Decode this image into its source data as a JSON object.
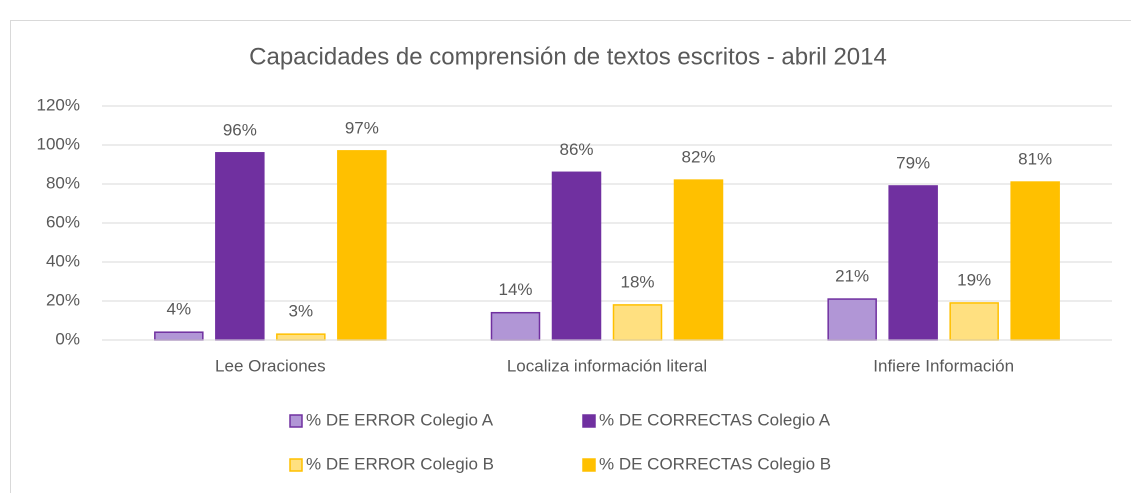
{
  "chart_data": {
    "type": "bar",
    "title": "Capacidades de comprensión de textos escritos - abril 2014",
    "categories": [
      "Lee Oraciones",
      "Localiza información literal",
      "Infiere Información"
    ],
    "series": [
      {
        "name": "% DE ERROR Colegio A",
        "color": "#b196d6",
        "border": "#7030a0",
        "values": [
          4,
          14,
          21
        ],
        "value_labels": [
          "4%",
          "14%",
          "21%"
        ]
      },
      {
        "name": "% DE CORRECTAS Colegio A",
        "color": "#7030a0",
        "border": "#7030a0",
        "values": [
          96,
          86,
          79
        ],
        "value_labels": [
          "96%",
          "86%",
          "79%"
        ]
      },
      {
        "name": "% DE ERROR Colegio B",
        "color": "#ffe080",
        "border": "#ffc000",
        "values": [
          3,
          18,
          19
        ],
        "value_labels": [
          "3%",
          "18%",
          "19%"
        ]
      },
      {
        "name": "% DE CORRECTAS Colegio B",
        "color": "#ffc000",
        "border": "#ffc000",
        "values": [
          97,
          82,
          81
        ],
        "value_labels": [
          "97%",
          "82%",
          "81%"
        ]
      }
    ],
    "ylim": [
      0,
      120
    ],
    "yticks": [
      {
        "value": 0,
        "label": "0%"
      },
      {
        "value": 20,
        "label": "20%"
      },
      {
        "value": 40,
        "label": "40%"
      },
      {
        "value": 60,
        "label": "60%"
      },
      {
        "value": 80,
        "label": "80%"
      },
      {
        "value": 100,
        "label": "100%"
      },
      {
        "value": 120,
        "label": "120%"
      }
    ],
    "grid": true,
    "legend": "bottom"
  }
}
